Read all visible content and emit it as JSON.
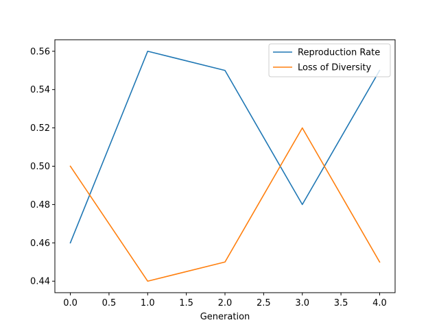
{
  "chart_data": {
    "type": "line",
    "title": "",
    "xlabel": "Generation",
    "ylabel": "",
    "x": [
      0,
      1,
      2,
      3,
      4
    ],
    "xlim": [
      -0.2,
      4.2
    ],
    "ylim": [
      0.434,
      0.566
    ],
    "xticks": [
      0,
      0.5,
      1,
      1.5,
      2,
      2.5,
      3,
      3.5,
      4
    ],
    "xtick_labels": [
      "0.0",
      "0.5",
      "1.0",
      "1.5",
      "2.0",
      "2.5",
      "3.0",
      "3.5",
      "4.0"
    ],
    "yticks": [
      0.44,
      0.46,
      0.48,
      0.5,
      0.52,
      0.54,
      0.56
    ],
    "ytick_labels": [
      "0.44",
      "0.46",
      "0.48",
      "0.50",
      "0.52",
      "0.54",
      "0.56"
    ],
    "grid": false,
    "legend_position": "top-right",
    "series": [
      {
        "name": "Reproduction Rate",
        "color": "#1f77b4",
        "values": [
          0.46,
          0.56,
          0.55,
          0.48,
          0.55
        ]
      },
      {
        "name": "Loss of Diversity",
        "color": "#ff7f0e",
        "values": [
          0.5,
          0.44,
          0.45,
          0.52,
          0.45
        ]
      }
    ]
  }
}
